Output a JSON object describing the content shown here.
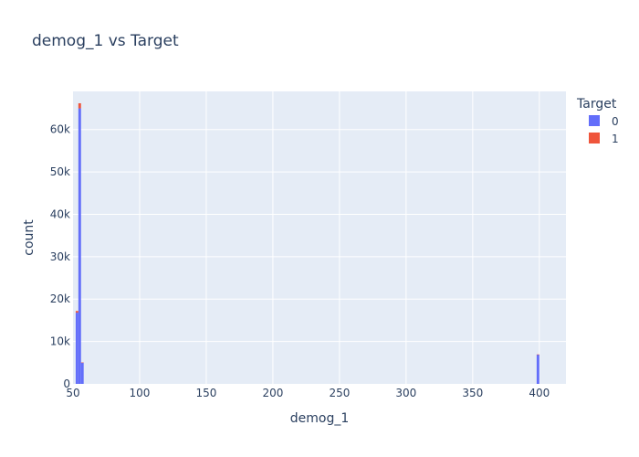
{
  "chart_data": {
    "type": "bar",
    "title": "demog_1 vs Target",
    "xlabel": "demog_1",
    "ylabel": "count",
    "xlim": [
      50,
      420
    ],
    "ylim": [
      0,
      69000
    ],
    "bin_width": 2,
    "x_ticks": [
      50,
      100,
      150,
      200,
      250,
      300,
      350,
      400
    ],
    "y_ticks": [
      0,
      10000,
      20000,
      30000,
      40000,
      50000,
      60000
    ],
    "x_tick_labels": [
      "50",
      "100",
      "150",
      "200",
      "250",
      "300",
      "350",
      "400"
    ],
    "y_tick_labels": [
      "0",
      "10k",
      "20k",
      "30k",
      "40k",
      "50k",
      "60k"
    ],
    "barmode": "stack",
    "grid": true,
    "legend": {
      "title": "Target",
      "placement": "right"
    },
    "series": [
      {
        "name": "0",
        "color": "#636efa",
        "bins": [
          {
            "x0": 52,
            "x1": 54,
            "value": 16800
          },
          {
            "x0": 54,
            "x1": 56,
            "value": 65000
          },
          {
            "x0": 56,
            "x1": 58,
            "value": 5000
          },
          {
            "x0": 398,
            "x1": 400,
            "value": 6900
          }
        ]
      },
      {
        "name": "1",
        "color": "#ef553b",
        "bins": [
          {
            "x0": 52,
            "x1": 54,
            "value": 400
          },
          {
            "x0": 54,
            "x1": 56,
            "value": 1200
          },
          {
            "x0": 56,
            "x1": 58,
            "value": 50
          },
          {
            "x0": 398,
            "x1": 400,
            "value": 50
          }
        ]
      }
    ]
  }
}
